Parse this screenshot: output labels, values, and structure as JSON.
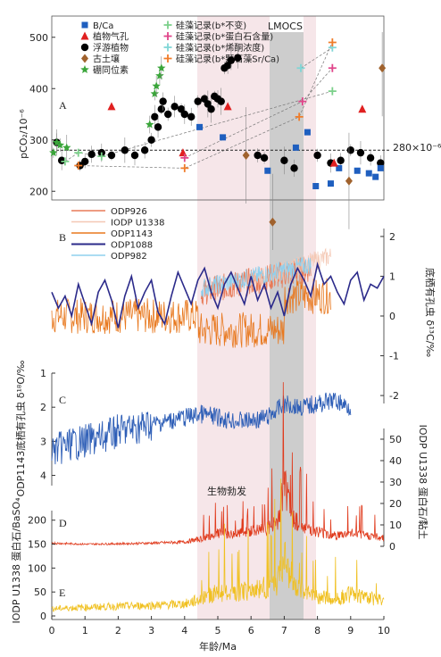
{
  "figure": {
    "shading_label": "LMOCS",
    "note_label": "生物勃发",
    "x_axis": {
      "label": "年龄/Ma",
      "ticks": [
        "0",
        "1",
        "2",
        "3",
        "4",
        "5",
        "6",
        "7",
        "8",
        "9",
        "10"
      ],
      "lim": [
        0,
        10
      ]
    },
    "ref_line_label": "280×10⁻⁶"
  },
  "chart_data": [
    {
      "panel": "A",
      "type": "scatter",
      "ylabel": "pCO₂/10⁻⁶",
      "yticks": [
        "200",
        "300",
        "400",
        "500"
      ],
      "ylim": [
        190,
        510
      ],
      "reference_line": 280,
      "legend": [
        {
          "name": "B/Ca",
          "marker": "square",
          "color": "#1f5fbf"
        },
        {
          "name": "植物气孔",
          "marker": "triangle",
          "color": "#e02020"
        },
        {
          "name": "浮游植物",
          "marker": "circle",
          "color": "#000000"
        },
        {
          "name": "古土壤",
          "marker": "diamond",
          "color": "#a0622d"
        },
        {
          "name": "硼同位素",
          "marker": "star",
          "color": "#3aa53a"
        },
        {
          "name": "硅藻记录(b*不变)",
          "marker": "plus",
          "color": "#7bd08a"
        },
        {
          "name": "硅藻记录(b*蛋白石含量)",
          "marker": "plus",
          "color": "#e0458a"
        },
        {
          "name": "硅藻记录(b*烯酮浓度)",
          "marker": "plus",
          "color": "#7fd6d6"
        },
        {
          "name": "硅藻记录(b*颗石藻Sr/Ca)",
          "marker": "plus",
          "color": "#f07c2a"
        }
      ],
      "series": [
        {
          "name": "浮游植物",
          "x": [
            0.15,
            0.3,
            0.85,
            1.0,
            1.2,
            1.5,
            1.8,
            2.2,
            2.5,
            2.8,
            3.0,
            3.1,
            3.2,
            3.3,
            3.35,
            3.5,
            3.7,
            3.9,
            4.0,
            4.2,
            4.4,
            4.6,
            4.7,
            4.8,
            4.9,
            5.0,
            5.1,
            5.2,
            5.3,
            5.4,
            5.6,
            6.2,
            6.4,
            7.0,
            7.3,
            8.0,
            8.4,
            8.7,
            9.0,
            9.3,
            9.6,
            9.9
          ],
          "y": [
            295,
            260,
            250,
            258,
            272,
            275,
            270,
            280,
            270,
            280,
            300,
            345,
            325,
            360,
            375,
            350,
            365,
            360,
            350,
            345,
            375,
            380,
            370,
            360,
            385,
            380,
            375,
            440,
            445,
            455,
            460,
            270,
            265,
            260,
            245,
            270,
            255,
            260,
            280,
            275,
            265,
            255
          ]
        },
        {
          "name": "B/Ca",
          "x": [
            4.45,
            5.15,
            6.5,
            7.35,
            7.7,
            7.95,
            8.4,
            8.65,
            9.2,
            9.55,
            9.75,
            9.9
          ],
          "y": [
            325,
            305,
            240,
            285,
            315,
            210,
            215,
            245,
            240,
            235,
            228,
            245
          ]
        },
        {
          "name": "植物气孔",
          "x": [
            1.8,
            3.95,
            5.3,
            8.5,
            9.35
          ],
          "y": [
            365,
            275,
            365,
            255,
            360
          ]
        },
        {
          "name": "古土壤",
          "x": [
            5.85,
            6.65,
            8.95,
            9.95
          ],
          "y": [
            270,
            140,
            220,
            440
          ]
        },
        {
          "name": "硼同位素",
          "x": [
            0.05,
            0.15,
            0.25,
            0.45,
            2.95,
            3.1,
            3.15,
            3.25,
            3.3
          ],
          "y": [
            275,
            295,
            290,
            285,
            330,
            390,
            405,
            425,
            440
          ]
        },
        {
          "name": "硅藻记录(b*不变)",
          "x": [
            0.4,
            0.8,
            1.5,
            8.45
          ],
          "y": [
            258,
            275,
            268,
            395
          ]
        },
        {
          "name": "硅藻记录(b*蛋白石含量)",
          "x": [
            4.0,
            7.55,
            8.45
          ],
          "y": [
            265,
            375,
            440
          ]
        },
        {
          "name": "硅藻记录(b*烯酮浓度)",
          "x": [
            7.5,
            8.45
          ],
          "y": [
            440,
            480
          ]
        },
        {
          "name": "硅藻记录(b*颗石藻Sr/Ca)",
          "x": [
            0.8,
            4.0,
            7.45,
            8.45
          ],
          "y": [
            250,
            245,
            345,
            490
          ]
        }
      ]
    },
    {
      "panel": "B",
      "type": "line",
      "ylabel": "底栖有孔虫 δ¹³C/‰",
      "yticks": [
        "2",
        "1",
        "0",
        "-1",
        "-2"
      ],
      "ylim": [
        -2.2,
        2.2
      ],
      "series": [
        {
          "name": "ODP926",
          "color": "#e87b58"
        },
        {
          "name": "IODP U1338",
          "color": "#f4c8b4"
        },
        {
          "name": "ODP1143",
          "color": "#e8781e"
        },
        {
          "name": "ODP1088",
          "color": "#2b2a8a",
          "x": [
            0,
            0.2,
            0.4,
            0.6,
            0.8,
            1.0,
            1.2,
            1.4,
            1.6,
            1.8,
            2.0,
            2.2,
            2.4,
            2.6,
            2.8,
            3.0,
            3.2,
            3.4,
            3.6,
            3.8,
            4.0,
            4.2,
            4.4,
            4.6,
            4.8,
            5.0,
            5.2,
            5.4,
            5.6,
            5.8,
            6.0,
            6.2,
            6.4,
            6.6,
            6.8,
            7.0,
            7.2,
            7.4,
            7.6,
            7.8,
            8.0,
            8.2,
            8.4,
            8.6,
            8.8,
            9.0,
            9.2,
            9.4,
            9.6,
            9.8,
            10.0
          ],
          "y": [
            0.6,
            0.2,
            0.5,
            0.0,
            0.8,
            0.3,
            -0.2,
            0.6,
            0.9,
            0.4,
            -0.3,
            0.5,
            1.0,
            0.2,
            0.6,
            0.9,
            0.1,
            -0.2,
            0.5,
            1.1,
            0.7,
            0.3,
            0.9,
            1.2,
            0.6,
            0.2,
            0.8,
            1.1,
            0.7,
            0.3,
            1.0,
            0.4,
            0.8,
            0.2,
            0.6,
            0.0,
            0.8,
            1.2,
            0.9,
            0.5,
            1.3,
            0.8,
            1.0,
            0.6,
            0.3,
            0.9,
            1.1,
            0.4,
            0.8,
            0.7,
            1.0
          ]
        },
        {
          "name": "ODP982",
          "color": "#8fd0ee"
        }
      ]
    },
    {
      "panel": "C",
      "type": "line",
      "ylabel": "ODP1143底栖有孔虫 δ¹⁸O/‰",
      "yticks": [
        "1",
        "2",
        "3",
        "4"
      ],
      "ylim": [
        4.3,
        1.0
      ],
      "series": [
        {
          "name": "ODP1143",
          "color": "#2f5fb7",
          "x": [
            0,
            0.5,
            1.0,
            1.5,
            2.0,
            2.5,
            3.0,
            3.5,
            4.0,
            4.5,
            5.0,
            5.5,
            6.0,
            6.5,
            7.0,
            7.5,
            8.0,
            8.5,
            9.0
          ],
          "y": [
            3.3,
            3.1,
            3.0,
            2.9,
            2.7,
            2.6,
            2.5,
            2.4,
            2.3,
            2.2,
            2.3,
            2.4,
            2.4,
            2.3,
            1.9,
            2.0,
            1.9,
            1.8,
            2.0
          ]
        }
      ]
    },
    {
      "panel": "D",
      "type": "line",
      "ylabel": "IODP U1338 蛋白石/黏土",
      "yticks": [
        "0",
        "10",
        "20",
        "30",
        "40",
        "50"
      ],
      "ylim": [
        0,
        55
      ],
      "series": [
        {
          "name": "IODP U1338 蛋白石/黏土",
          "color": "#e03a1c",
          "x": [
            0,
            1,
            2,
            3,
            4,
            4.5,
            5,
            5.5,
            6,
            6.5,
            6.8,
            7.0,
            7.2,
            7.5,
            8,
            8.5,
            9,
            9.5,
            10
          ],
          "y": [
            1.5,
            1.0,
            1.2,
            1.5,
            2.0,
            3.5,
            6.0,
            5.5,
            7.0,
            8.0,
            12.0,
            30.0,
            15.0,
            10.0,
            7.0,
            5.0,
            6.0,
            5.0,
            4.0
          ]
        }
      ]
    },
    {
      "panel": "E",
      "type": "line",
      "ylabel": "IODP U1338 蛋白石/BaSO₄",
      "yticks": [
        "0",
        "50",
        "100",
        "150",
        "200"
      ],
      "ylim": [
        0,
        220
      ],
      "series": [
        {
          "name": "IODP U1338 蛋白石/BaSO₄",
          "color": "#f0c020",
          "x": [
            0,
            1,
            2,
            3,
            4,
            4.5,
            5,
            5.5,
            6,
            6.5,
            6.8,
            7.0,
            7.2,
            7.5,
            8,
            8.5,
            9,
            9.5,
            10
          ],
          "y": [
            15,
            18,
            20,
            22,
            25,
            35,
            50,
            45,
            55,
            60,
            70,
            120,
            65,
            50,
            40,
            35,
            45,
            40,
            30
          ]
        }
      ]
    }
  ]
}
